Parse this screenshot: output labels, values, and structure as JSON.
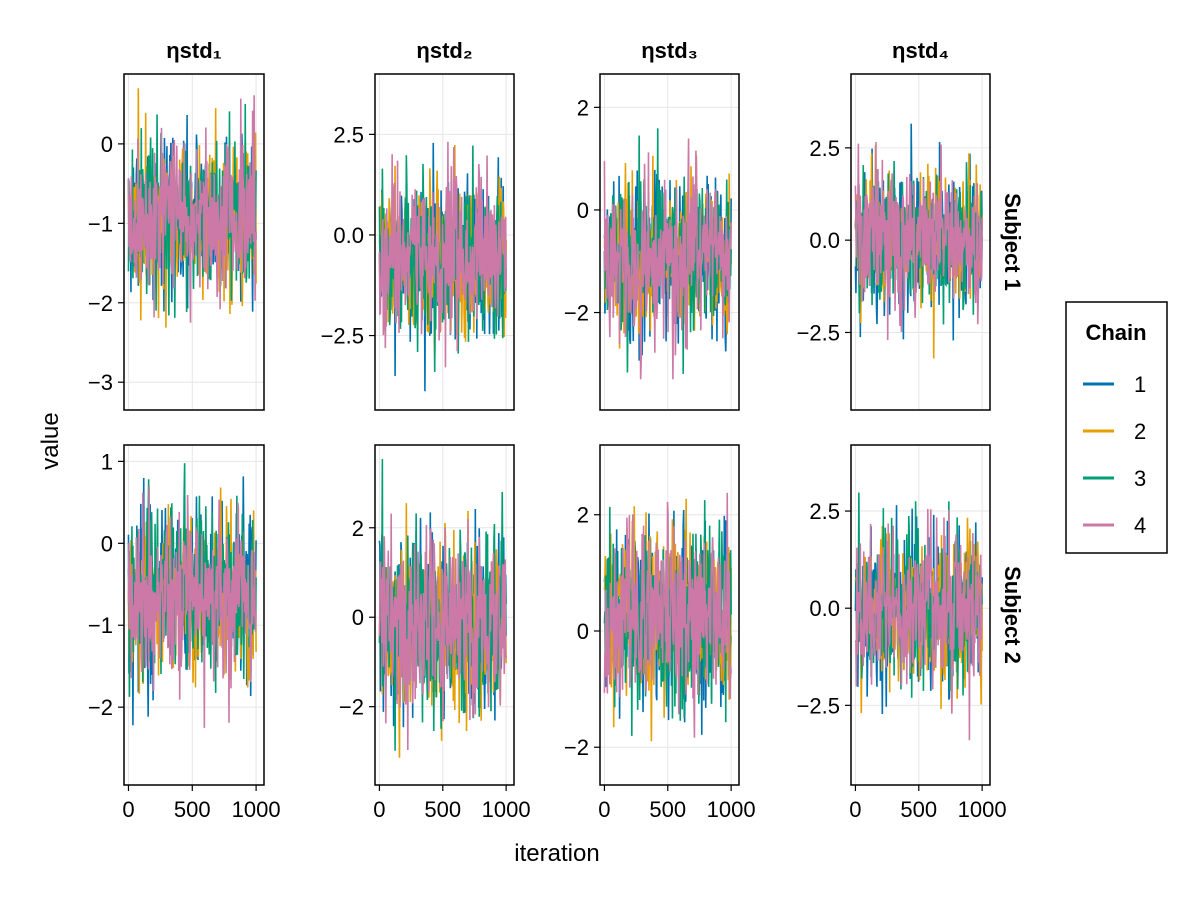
{
  "chart_data": {
    "type": "line",
    "xlabel": "iteration",
    "ylabel": "value",
    "columns": [
      "ηstd₁",
      "ηstd₂",
      "ηstd₃",
      "ηstd₄"
    ],
    "rows": [
      "Subject 1",
      "Subject 2"
    ],
    "x_range": [
      0,
      1000
    ],
    "x_ticks": [
      0,
      500,
      1000
    ],
    "x_tick_labels": [
      "0",
      "500",
      "1000"
    ],
    "grid": true,
    "legend": {
      "title": "Chain",
      "placement": "right",
      "entries": [
        {
          "name": "1",
          "color": "#0072B2"
        },
        {
          "name": "2",
          "color": "#E69F00"
        },
        {
          "name": "3",
          "color": "#009E73"
        },
        {
          "name": "4",
          "color": "#CC79A7"
        }
      ]
    },
    "panels": [
      {
        "row": 0,
        "col": 0,
        "ylim": [
          -3.35,
          0.88
        ],
        "yticks": [
          0,
          -1,
          -2,
          -3
        ],
        "ytick_labels": [
          "0",
          "−1",
          "−2",
          "−3"
        ],
        "series_summary": {
          "center": -0.9,
          "spread": 0.5,
          "min": -3.15,
          "max": 0.7
        }
      },
      {
        "row": 0,
        "col": 1,
        "ylim": [
          -4.35,
          4.0
        ],
        "yticks": [
          2.5,
          0.0,
          -2.5
        ],
        "ytick_labels": [
          "2.5",
          "0.0",
          "−2.5"
        ],
        "series_summary": {
          "center": -0.6,
          "spread": 1.0,
          "min": -3.9,
          "max": 3.6
        }
      },
      {
        "row": 0,
        "col": 2,
        "ylim": [
          -3.9,
          2.65
        ],
        "yticks": [
          2,
          0,
          -2
        ],
        "ytick_labels": [
          "2",
          "0",
          "−2"
        ],
        "series_summary": {
          "center": -0.9,
          "spread": 0.75,
          "min": -3.3,
          "max": 2.3
        }
      },
      {
        "row": 0,
        "col": 3,
        "ylim": [
          -4.6,
          4.5
        ],
        "yticks": [
          2.5,
          0.0,
          -2.5
        ],
        "ytick_labels": [
          "2.5",
          "0.0",
          "−2.5"
        ],
        "series_summary": {
          "center": 0.0,
          "spread": 1.0,
          "min": -3.9,
          "max": 3.9
        }
      },
      {
        "row": 1,
        "col": 0,
        "ylim": [
          -2.95,
          1.2
        ],
        "yticks": [
          1,
          0,
          -1,
          -2
        ],
        "ytick_labels": [
          "1",
          "0",
          "−1",
          "−2"
        ],
        "series_summary": {
          "center": -0.6,
          "spread": 0.5,
          "min": -2.75,
          "max": 1.0
        }
      },
      {
        "row": 1,
        "col": 1,
        "ylim": [
          -3.75,
          3.85
        ],
        "yticks": [
          2,
          0,
          -2
        ],
        "ytick_labels": [
          "2",
          "0",
          "−2"
        ],
        "series_summary": {
          "center": -0.2,
          "spread": 1.0,
          "min": -3.4,
          "max": 3.6
        }
      },
      {
        "row": 1,
        "col": 2,
        "ylim": [
          -2.65,
          3.2
        ],
        "yticks": [
          2,
          0,
          -2
        ],
        "ytick_labels": [
          "2",
          "0",
          "−2"
        ],
        "series_summary": {
          "center": 0.3,
          "spread": 0.75,
          "min": -2.3,
          "max": 3.0
        }
      },
      {
        "row": 1,
        "col": 3,
        "ylim": [
          -4.55,
          4.2
        ],
        "yticks": [
          2.5,
          0.0,
          -2.5
        ],
        "ytick_labels": [
          "2.5",
          "0.0",
          "−2.5"
        ],
        "series_summary": {
          "center": 0.0,
          "spread": 1.0,
          "min": -4.0,
          "max": 3.7
        }
      }
    ]
  }
}
